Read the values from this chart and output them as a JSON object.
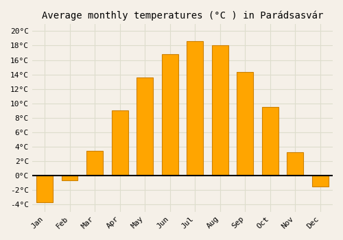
{
  "title": "Average monthly temperatures (°C ) in Parádsasvár",
  "months": [
    "Jan",
    "Feb",
    "Mar",
    "Apr",
    "May",
    "Jun",
    "Jul",
    "Aug",
    "Sep",
    "Oct",
    "Nov",
    "Dec"
  ],
  "values": [
    -3.7,
    -0.7,
    3.4,
    9.0,
    13.6,
    16.8,
    18.6,
    18.0,
    14.3,
    9.5,
    3.2,
    -1.5
  ],
  "bar_color": "#FFA500",
  "bar_edge_color": "#CC8000",
  "background_color": "#f5f0e8",
  "plot_bg_color": "#f5f0e8",
  "grid_color": "#ddddcc",
  "ylim": [
    -5,
    21
  ],
  "yticks": [
    -4,
    -2,
    0,
    2,
    4,
    6,
    8,
    10,
    12,
    14,
    16,
    18,
    20
  ],
  "title_fontsize": 10,
  "tick_fontsize": 8,
  "bar_width": 0.65
}
